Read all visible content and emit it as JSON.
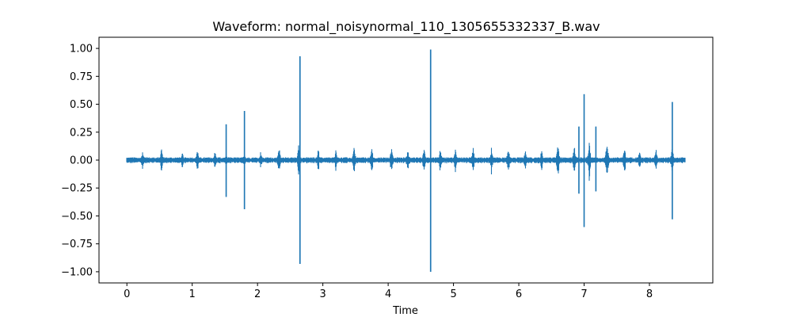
{
  "chart_data": {
    "type": "line",
    "title": "Waveform: normal_noisynormal_110_1305655332337_B.wav",
    "xlabel": "Time",
    "ylabel": "",
    "xlim": [
      -0.427,
      8.97
    ],
    "ylim": [
      -1.1,
      1.1
    ],
    "x_ticks": [
      0,
      1,
      2,
      3,
      4,
      5,
      6,
      7,
      8
    ],
    "x_tick_labels": [
      "0",
      "1",
      "2",
      "3",
      "4",
      "5",
      "6",
      "7",
      "8"
    ],
    "y_ticks": [
      1.0,
      0.75,
      0.5,
      0.25,
      0.0,
      -0.25,
      -0.5,
      -0.75,
      -1.0
    ],
    "y_tick_labels": [
      "1.00",
      "0.75",
      "0.50",
      "0.25",
      "0.00",
      "−0.25",
      "−0.50",
      "−0.75",
      "−1.00"
    ],
    "grid": false,
    "legend": false,
    "series_color": "#1f77b4",
    "duration": 8.54,
    "noise_amplitude": 0.018,
    "beat_times": [
      0.24,
      0.53,
      0.85,
      1.08,
      1.35,
      1.52,
      1.8,
      2.05,
      2.33,
      2.63,
      2.93,
      3.2,
      3.48,
      3.75,
      4.05,
      4.3,
      4.55,
      4.8,
      5.03,
      5.3,
      5.58,
      5.84,
      6.1,
      6.35,
      6.6,
      6.85,
      7.08,
      7.35,
      7.62,
      7.85,
      8.1,
      8.35
    ],
    "beat_amplitudes": [
      0.1,
      0.14,
      0.08,
      0.12,
      0.1,
      0.06,
      0.08,
      0.09,
      0.14,
      0.15,
      0.12,
      0.1,
      0.14,
      0.14,
      0.14,
      0.12,
      0.15,
      0.14,
      0.12,
      0.14,
      0.12,
      0.14,
      0.12,
      0.12,
      0.18,
      0.18,
      0.18,
      0.22,
      0.14,
      0.12,
      0.14,
      0.14
    ],
    "spikes": [
      {
        "t": 1.52,
        "max": 0.32,
        "min": -0.33
      },
      {
        "t": 1.8,
        "max": 0.44,
        "min": -0.44
      },
      {
        "t": 2.65,
        "max": 0.93,
        "min": -0.93
      },
      {
        "t": 4.65,
        "max": 0.99,
        "min": -1.0
      },
      {
        "t": 6.92,
        "max": 0.3,
        "min": -0.3
      },
      {
        "t": 7.0,
        "max": 0.59,
        "min": -0.6
      },
      {
        "t": 7.18,
        "max": 0.3,
        "min": -0.28
      },
      {
        "t": 8.35,
        "max": 0.52,
        "min": -0.53
      }
    ]
  }
}
